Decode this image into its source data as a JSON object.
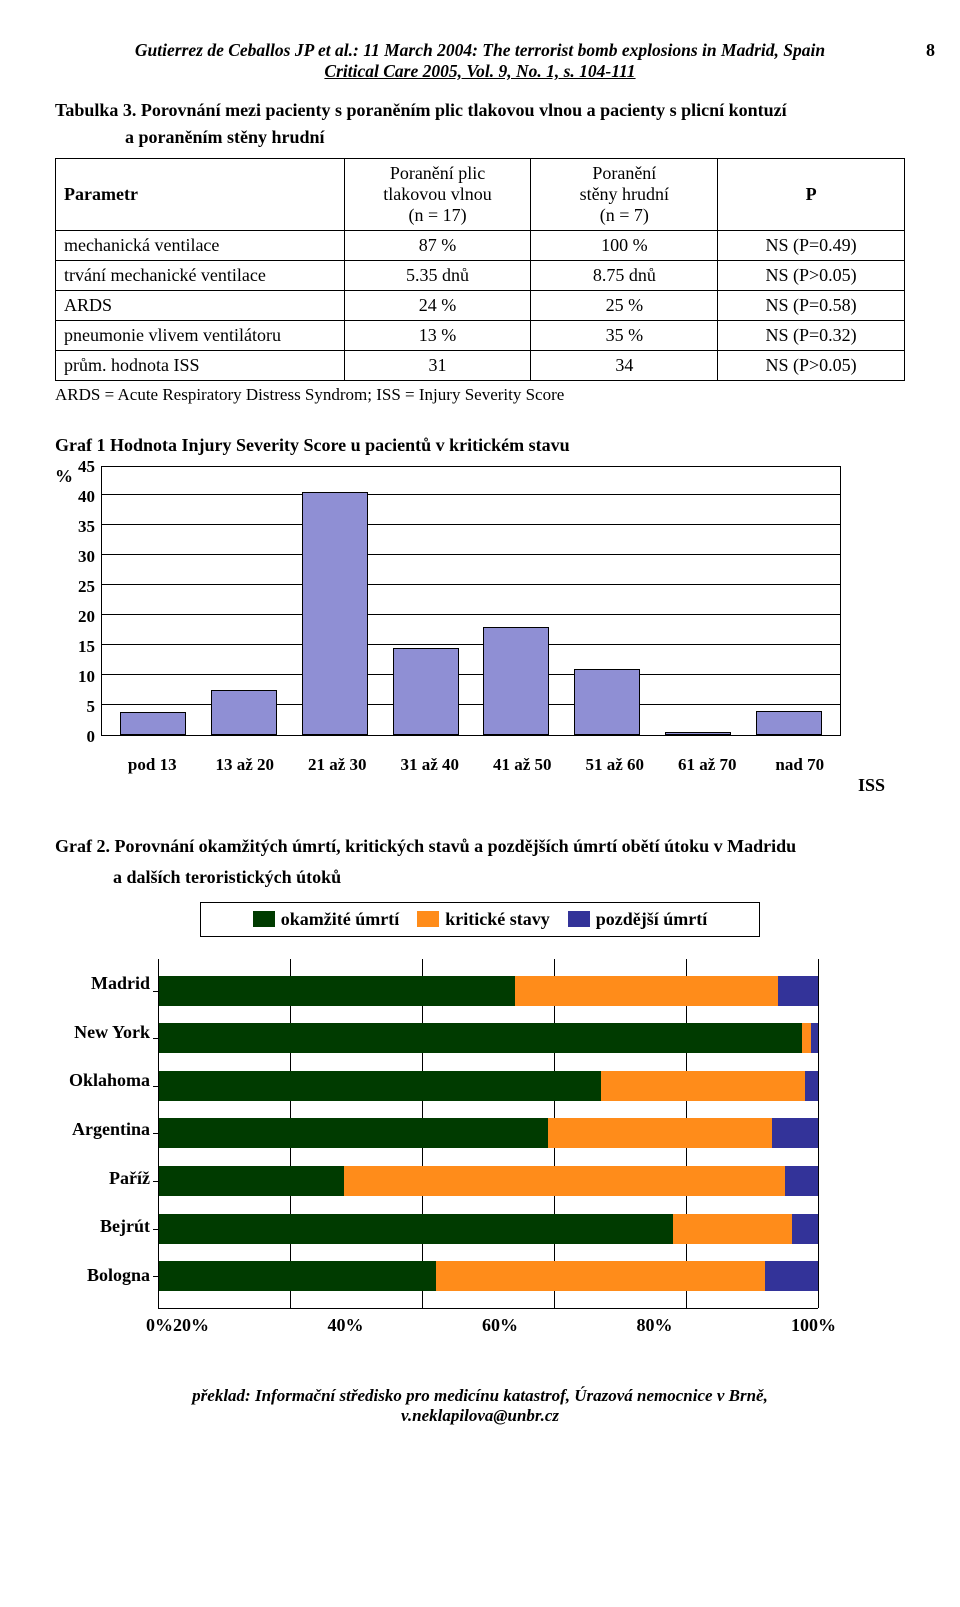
{
  "page": {
    "header_line1": "Gutierrez de Ceballos JP et al.: 11 March 2004: The terrorist bomb explosions in Madrid, Spain",
    "header_line2": "Critical Care 2005, Vol. 9, No. 1, s. 104-111",
    "page_number": "8"
  },
  "table3": {
    "title": "Tabulka 3. Porovnání mezi pacienty s  poraněním plic tlakovou vlnou a pacienty s plicní kontuzí",
    "subtitle": "a poraněním stěny hrudní",
    "col_param": "Parametr",
    "col_a_l1": "Poranění plic",
    "col_a_l2": "tlakovou vlnou",
    "col_a_l3": "(n = 17)",
    "col_b_l1": "Poranění",
    "col_b_l2": "stěny hrudní",
    "col_b_l3": "(n = 7)",
    "col_p": "P",
    "rows": [
      {
        "param": "mechanická ventilace",
        "a": "87 %",
        "b": "100 %",
        "p": "NS (P=0.49)"
      },
      {
        "param": "trvání mechanické ventilace",
        "a": "5.35 dnů",
        "b": "8.75 dnů",
        "p": "NS (P>0.05)"
      },
      {
        "param": "ARDS",
        "a": "24 %",
        "b": "25 %",
        "p": "NS (P=0.58)"
      },
      {
        "param": "pneumonie vlivem ventilátoru",
        "a": "13 %",
        "b": "35 %",
        "p": "NS (P=0.32)"
      },
      {
        "param": "prům. hodnota ISS",
        "a": "31",
        "b": "34",
        "p": "NS (P>0.05)"
      }
    ],
    "note": "ARDS = Acute Respiratory Distress Syndrom;   ISS = Injury Severity Score"
  },
  "chart1": {
    "title": "Graf 1  Hodnota Injury Severity Score u pacientů v kritickém stavu",
    "type": "bar",
    "y_axis_label": "%",
    "x_axis_label": "ISS",
    "ymax": 45,
    "ytick_step": 5,
    "yticks": [
      "45",
      "40",
      "35",
      "30",
      "25",
      "20",
      "15",
      "10",
      "5",
      "0"
    ],
    "categories": [
      "pod 13",
      "13 až 20",
      "21 až 30",
      "31 až 40",
      "41 až 50",
      "51 až 60",
      "61 až 70",
      "nad 70"
    ],
    "values": [
      3.8,
      7.5,
      40.5,
      14.5,
      18,
      11,
      0.5,
      4
    ],
    "bar_color": "#8f8fd4",
    "bar_border": "#000000",
    "grid_color": "#000000",
    "background_color": "#ffffff"
  },
  "chart2": {
    "title_l1": "Graf 2. Porovnání okamžitých úmrtí, kritických stavů a pozdějších úmrtí obětí útoku v Madridu",
    "title_l2": "a dalších teroristických útoků",
    "type": "stacked-bar-horizontal",
    "legend": [
      {
        "label": "okamžité úmrtí",
        "color": "#003b00"
      },
      {
        "label": "kritické stavy",
        "color": "#ff8c1a"
      },
      {
        "label": "pozdější úmrtí",
        "color": "#333399"
      }
    ],
    "categories": [
      "Madrid",
      "New York",
      "Oklahoma",
      "Argentina",
      "Paříž",
      "Bejrút",
      "Bologna"
    ],
    "series": [
      {
        "name": "okamžité úmrtí",
        "color": "#003b00",
        "values": [
          54,
          97.5,
          67,
          59,
          28,
          78,
          42
        ]
      },
      {
        "name": "kritické stavy",
        "color": "#ff8c1a",
        "values": [
          40,
          1.5,
          31,
          34,
          67,
          18,
          50
        ]
      },
      {
        "name": "pozdější úmrtí",
        "color": "#333399",
        "values": [
          6,
          1,
          2,
          7,
          5,
          4,
          8
        ]
      }
    ],
    "xticks": [
      "0%",
      "20%",
      "40%",
      "60%",
      "80%",
      "100%"
    ],
    "xmax": 100,
    "background_color": "#ffffff",
    "grid_color": "#000000"
  },
  "footer": {
    "line1": "překlad: Informační středisko pro medicínu katastrof, Úrazová nemocnice v Brně,",
    "line2": "v.neklapilova@unbr.cz"
  }
}
